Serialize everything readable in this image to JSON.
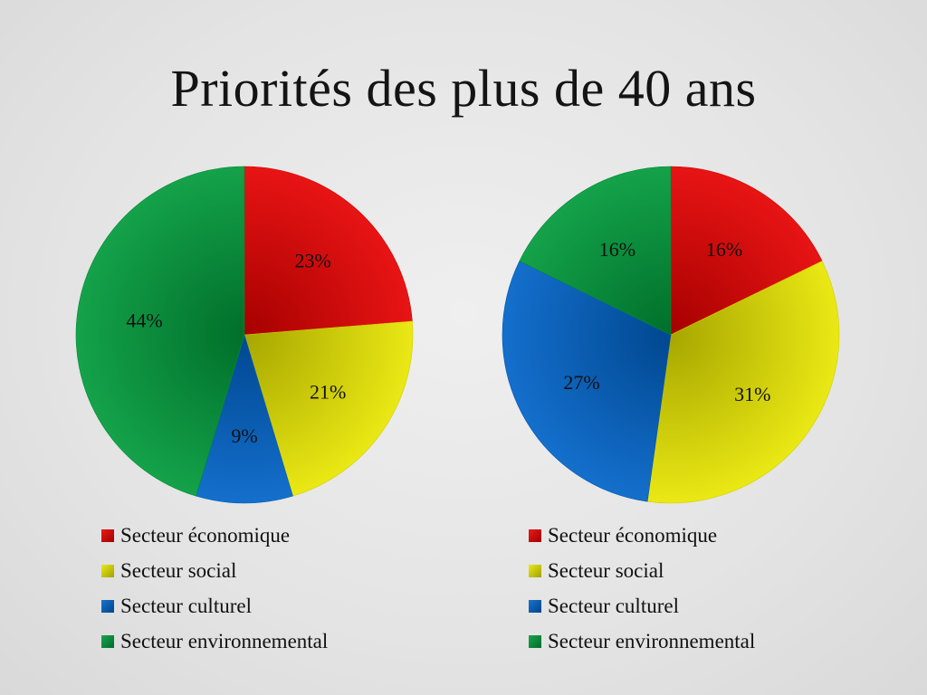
{
  "slide": {
    "title": "Priorités des plus de 40 ans"
  },
  "chart_data": [
    {
      "type": "pie",
      "categories": [
        "Secteur économique",
        "Secteur social",
        "Secteur culturel",
        "Secteur environnemental"
      ],
      "values": [
        23,
        21,
        9,
        44
      ],
      "labels": [
        "23%",
        "21%",
        "9%",
        "44%"
      ],
      "colors": [
        "#e60000",
        "#e8e600",
        "#0063c8",
        "#009a3a"
      ],
      "start_angle": "12 o'clock",
      "direction": "clockwise",
      "legend": "bottom"
    },
    {
      "type": "pie",
      "categories": [
        "Secteur économique",
        "Secteur social",
        "Secteur culturel",
        "Secteur environnemental"
      ],
      "values": [
        16,
        31,
        27,
        16
      ],
      "labels": [
        "16%",
        "31%",
        "27%",
        "16%"
      ],
      "colors": [
        "#e60000",
        "#e8e600",
        "#0063c8",
        "#009a3a"
      ],
      "start_angle": "12 o'clock",
      "direction": "clockwise",
      "legend": "bottom"
    }
  ]
}
